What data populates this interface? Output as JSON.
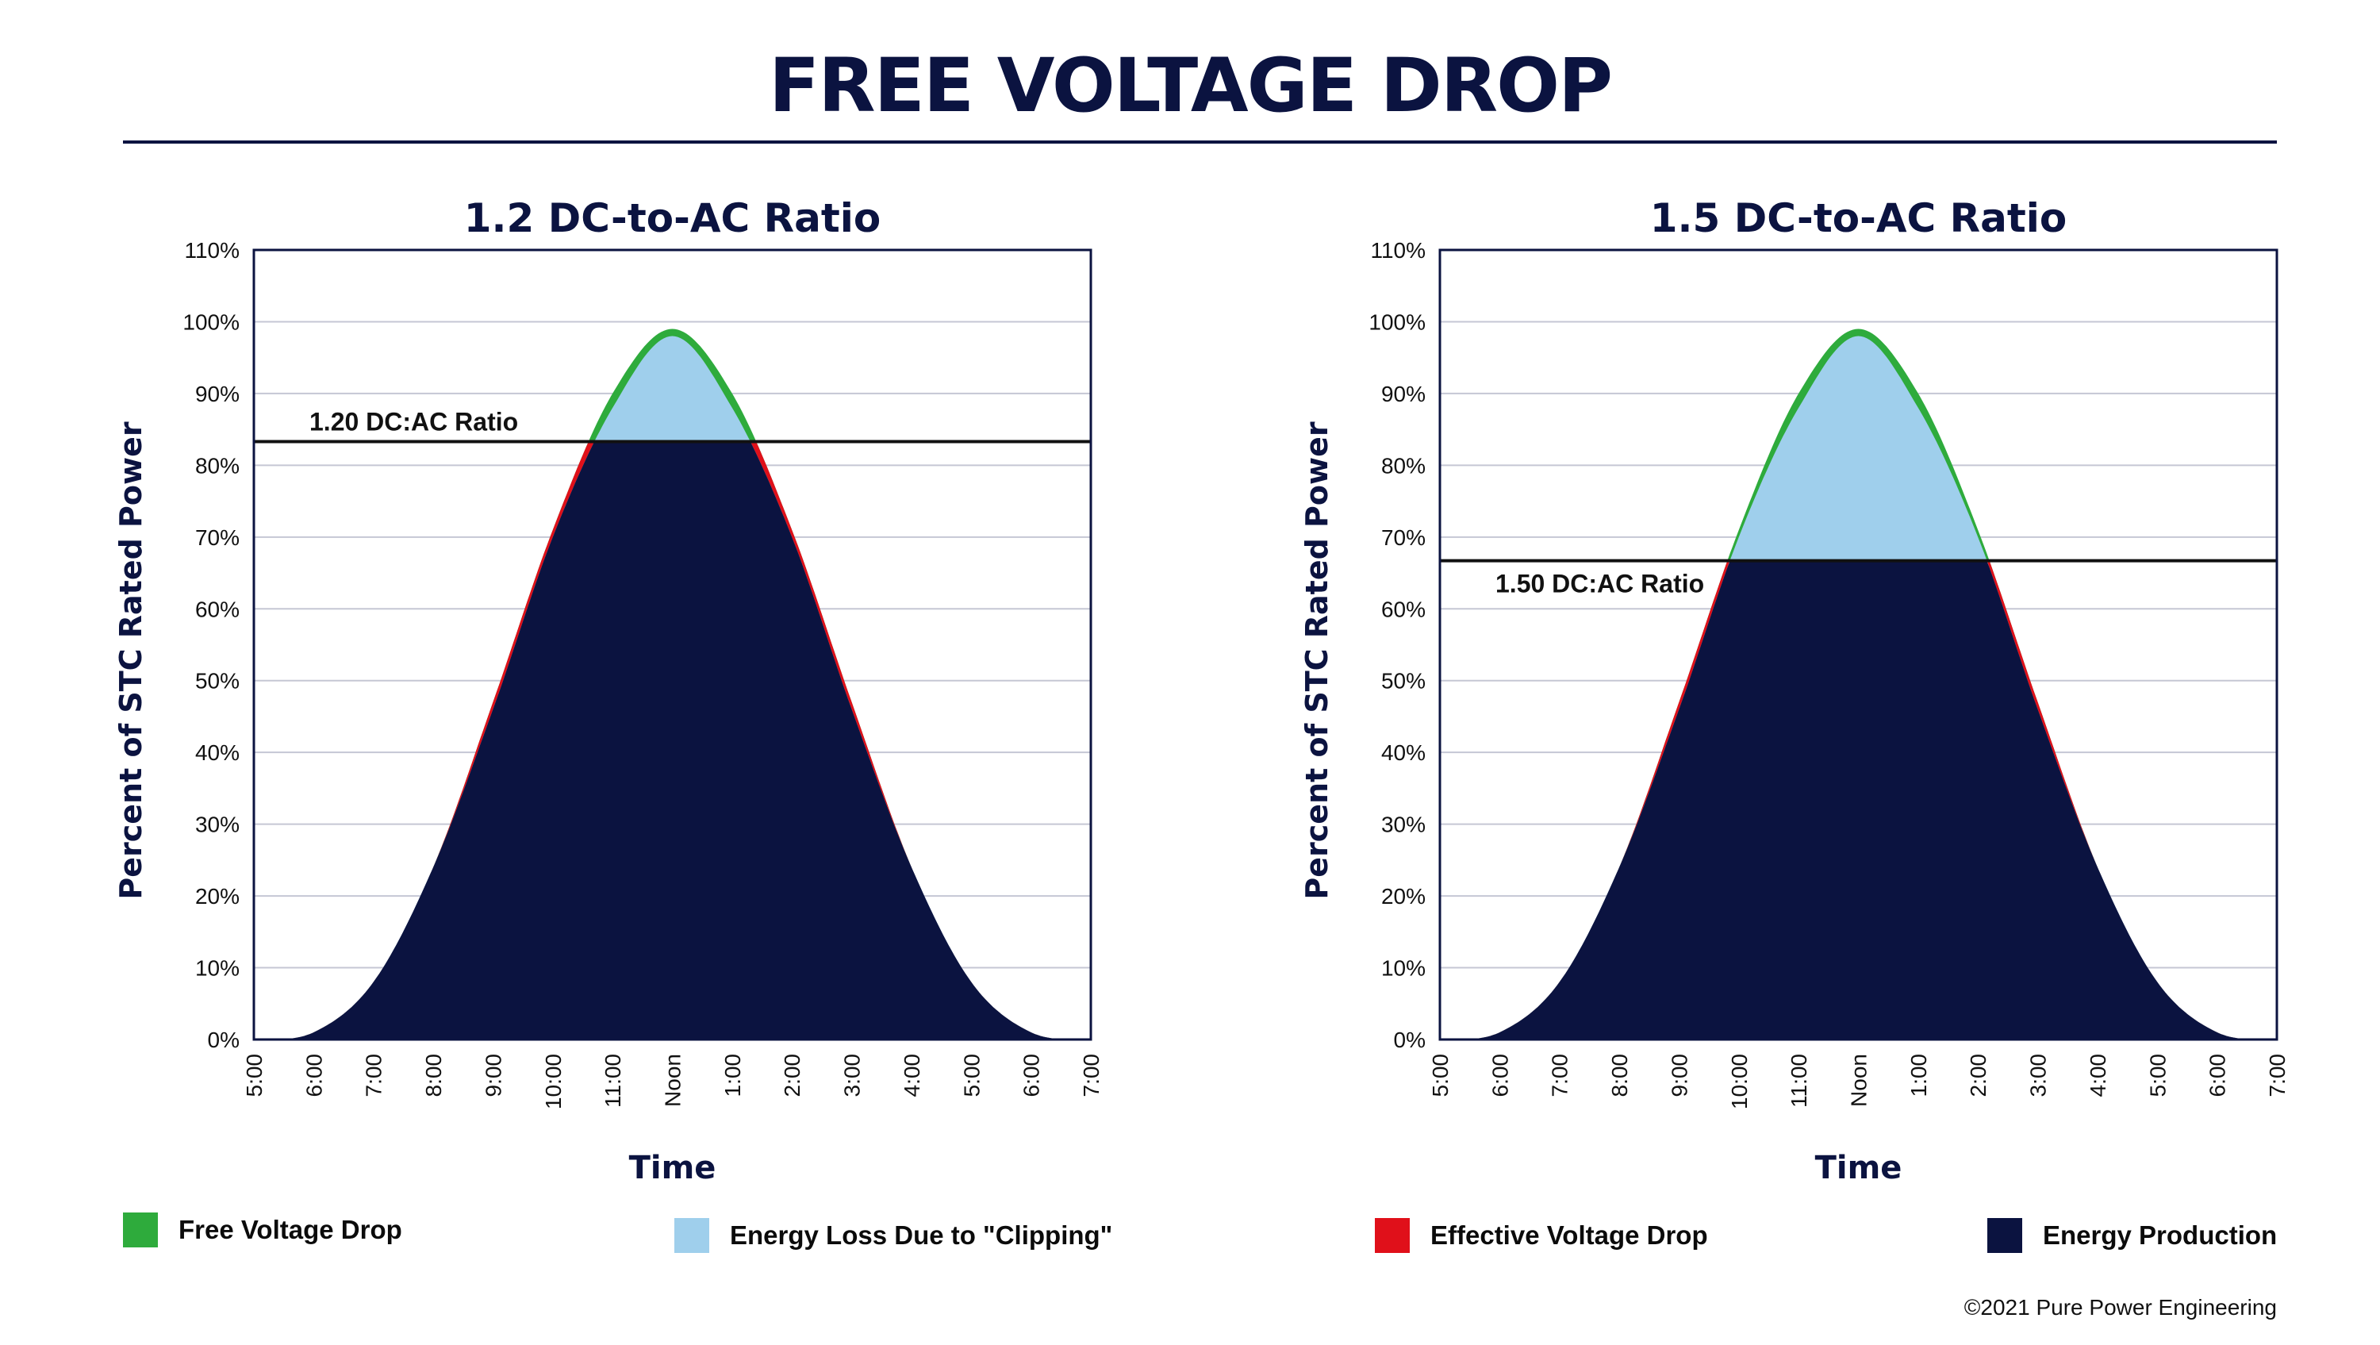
{
  "title": "FREE VOLTAGE DROP",
  "copyright": "©2021 Pure Power Engineering",
  "colors": {
    "navy": "#0b1340",
    "free_voltage_drop": "#2eab3c",
    "clipping_loss": "#9fcfec",
    "effective_voltage_drop": "#e0101a",
    "energy_production": "#0b1340",
    "grid": "#c5c7d4"
  },
  "legend": [
    {
      "label": "Free Voltage Drop",
      "color": "#2eab3c"
    },
    {
      "label": "Energy Loss Due to \"Clipping\"",
      "color": "#9fcfec"
    },
    {
      "label": "Effective Voltage Drop",
      "color": "#e0101a"
    },
    {
      "label": "Energy Production",
      "color": "#0b1340"
    }
  ],
  "chart_data": [
    {
      "type": "area",
      "title": "1.2 DC-to-AC Ratio",
      "xlabel": "Time",
      "ylabel": "Percent of STC Rated Power",
      "x": [
        "5:00",
        "6:00",
        "7:00",
        "8:00",
        "9:00",
        "10:00",
        "11:00",
        "Noon",
        "1:00",
        "2:00",
        "3:00",
        "4:00",
        "5:00",
        "6:00",
        "7:00"
      ],
      "yticks": [
        "0%",
        "10%",
        "20%",
        "30%",
        "40%",
        "50%",
        "60%",
        "70%",
        "80%",
        "90%",
        "100%",
        "110%"
      ],
      "ylim": [
        0,
        110
      ],
      "grid": true,
      "series": [
        {
          "values": [
            0,
            1,
            8,
            24,
            47,
            71,
            90,
            99,
            90,
            71,
            47,
            24,
            8,
            1,
            0
          ]
        },
        {
          "values": [
            0,
            1,
            8,
            24,
            46,
            70,
            88,
            98,
            88,
            70,
            46,
            24,
            8,
            1,
            0
          ]
        }
      ],
      "ac_limit": 83.3,
      "ac_limit_label": "1.20 DC:AC Ratio",
      "ac_limit_label_position": "above"
    },
    {
      "type": "area",
      "title": "1.5 DC-to-AC Ratio",
      "xlabel": "Time",
      "ylabel": "Percent of STC Rated Power",
      "x": [
        "5:00",
        "6:00",
        "7:00",
        "8:00",
        "9:00",
        "10:00",
        "11:00",
        "Noon",
        "1:00",
        "2:00",
        "3:00",
        "4:00",
        "5:00",
        "6:00",
        "7:00"
      ],
      "yticks": [
        "0%",
        "10%",
        "20%",
        "30%",
        "40%",
        "50%",
        "60%",
        "70%",
        "80%",
        "90%",
        "100%",
        "110%"
      ],
      "ylim": [
        0,
        110
      ],
      "grid": true,
      "series": [
        {
          "values": [
            0,
            1,
            8,
            24,
            47,
            71,
            90,
            99,
            90,
            71,
            47,
            24,
            8,
            1,
            0
          ]
        },
        {
          "values": [
            0,
            1,
            8,
            24,
            46,
            70,
            88,
            98,
            88,
            70,
            46,
            24,
            8,
            1,
            0
          ]
        }
      ],
      "ac_limit": 66.7,
      "ac_limit_label": "1.50 DC:AC Ratio",
      "ac_limit_label_position": "below"
    }
  ]
}
